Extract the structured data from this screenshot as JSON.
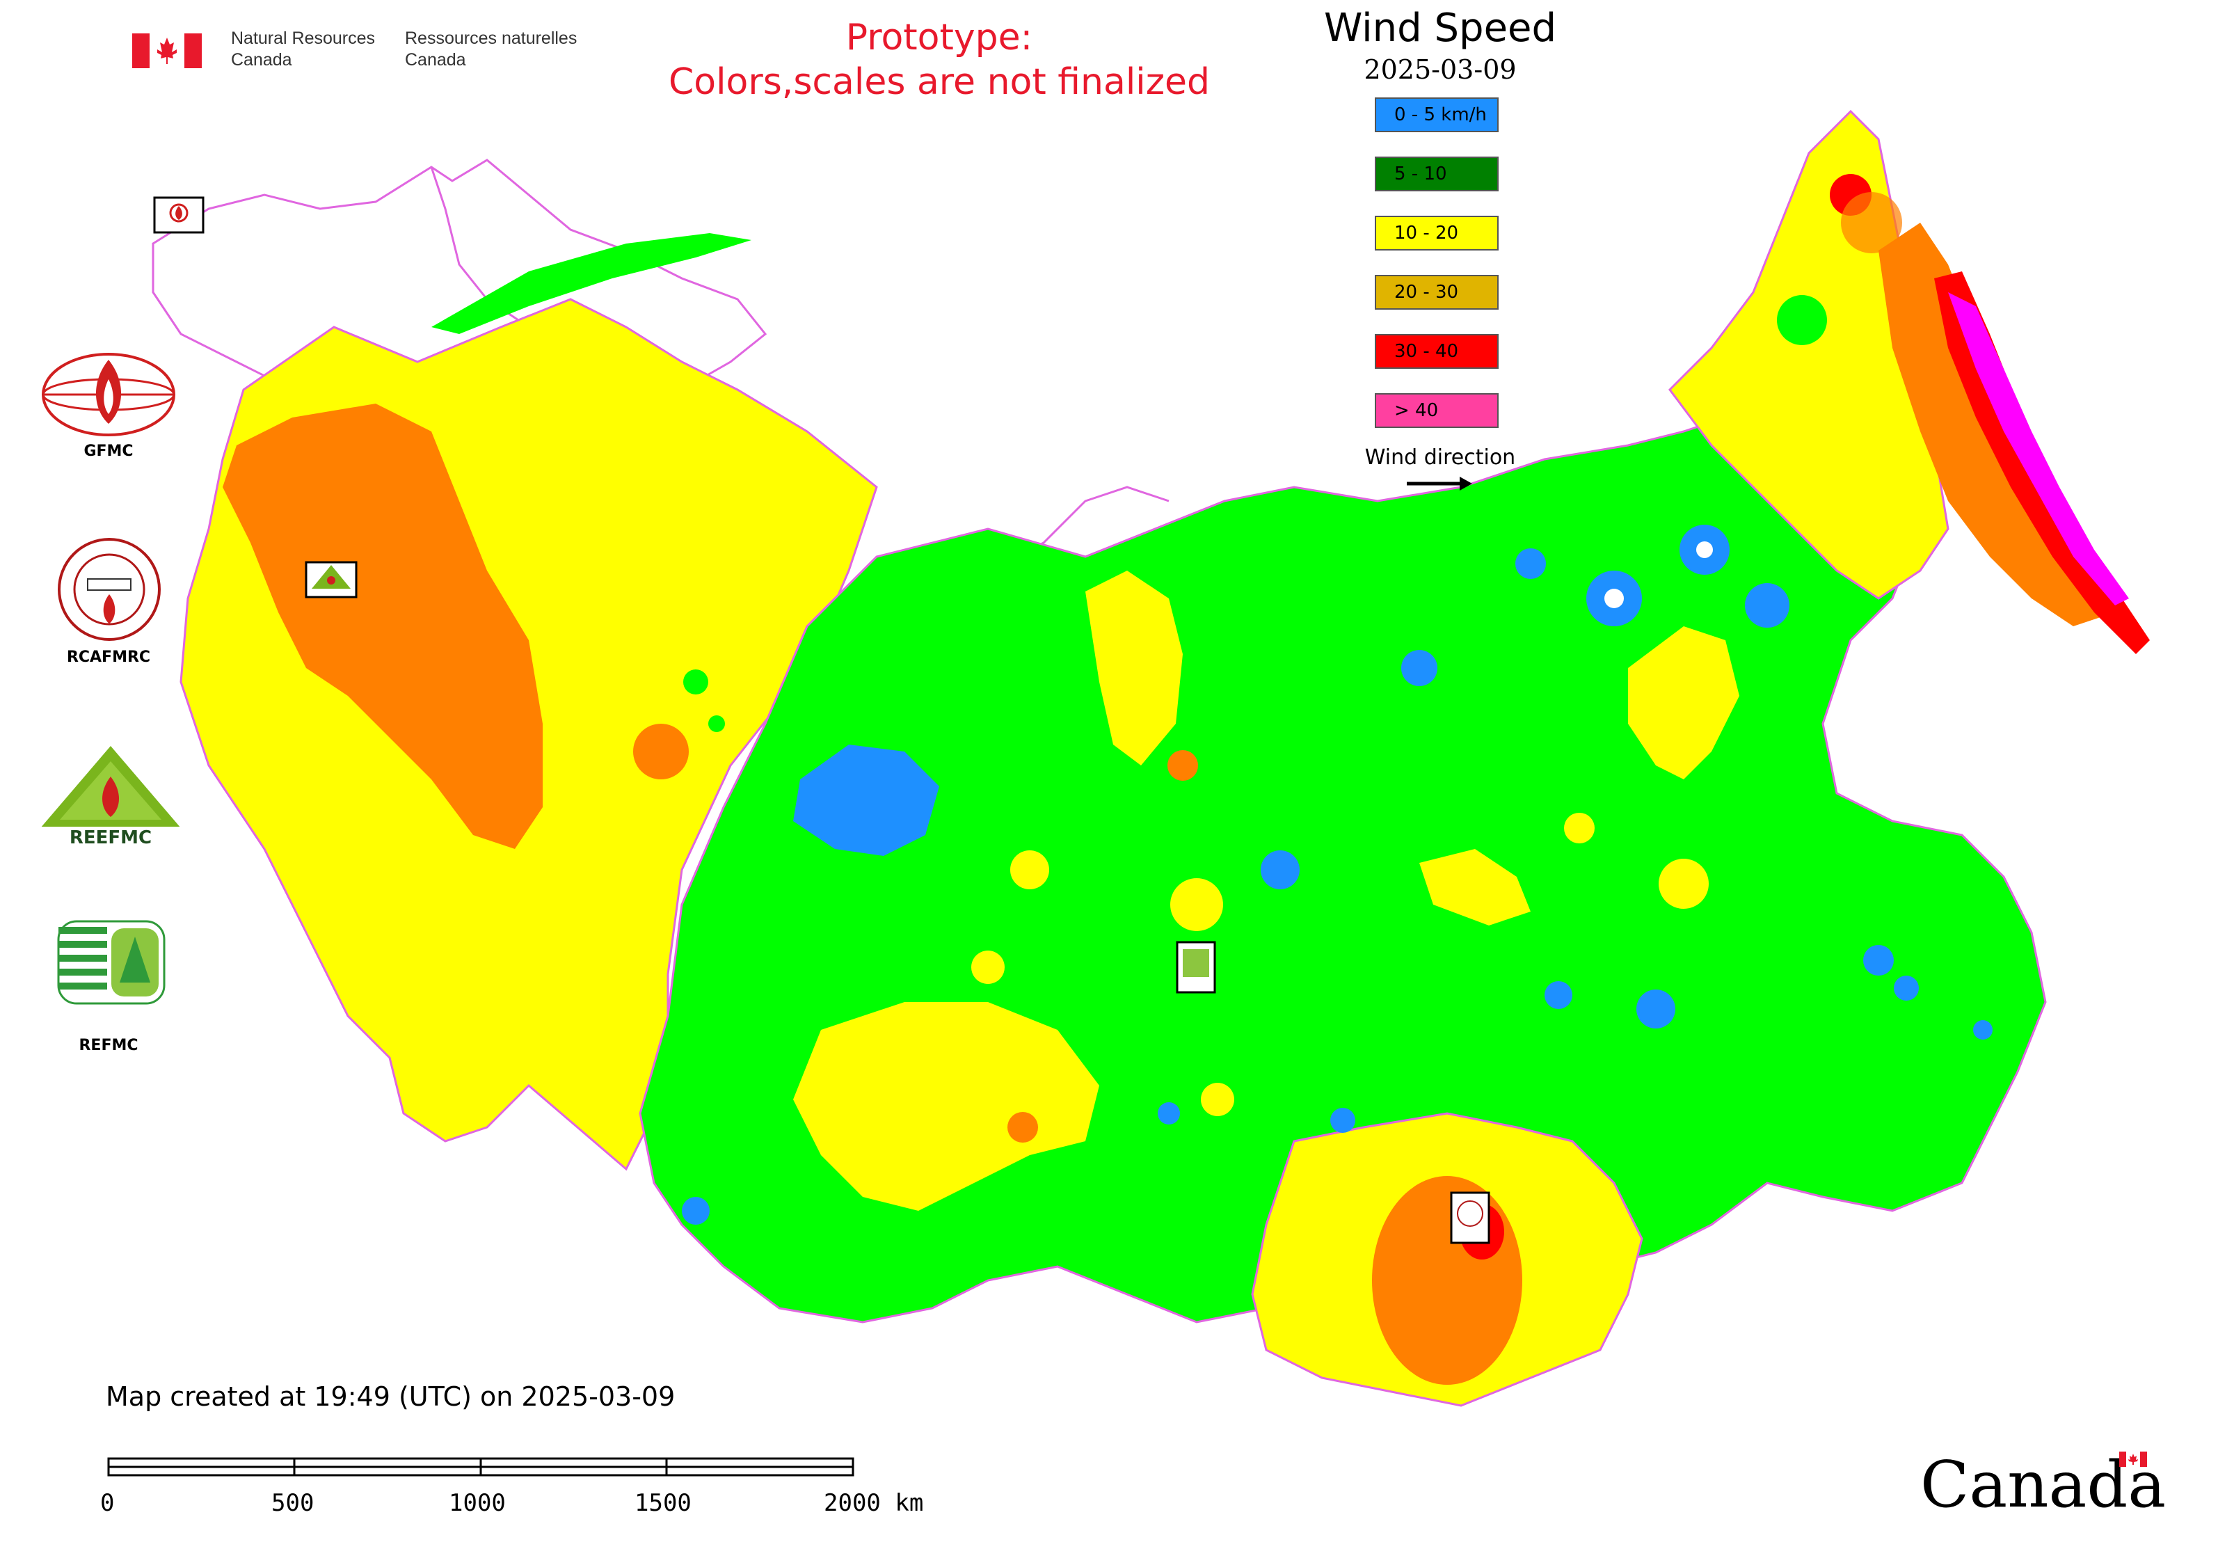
{
  "header": {
    "org_en_line1": "Natural Resources",
    "org_en_line2": "Canada",
    "org_fr_line1": "Ressources naturelles",
    "org_fr_line2": "Canada",
    "notice_line1": "Prototype:",
    "notice_line2": "Colors,scales are not finalized"
  },
  "legend": {
    "title": "Wind Speed",
    "date": "2025-03-09",
    "items": [
      {
        "label": "0 - 5 km/h",
        "color": "#1e90ff"
      },
      {
        "label": "5 - 10",
        "color": "#008000"
      },
      {
        "label": "10 - 20",
        "color": "#ffff00"
      },
      {
        "label": "20 - 30",
        "color": "#e0b400"
      },
      {
        "label": "30 - 40",
        "color": "#ff0000"
      },
      {
        "label": "> 40",
        "color": "#ff40a0"
      }
    ],
    "direction_label": "Wind direction",
    "direction_icon": "arrow-right-icon"
  },
  "logos": [
    {
      "label": "GFMC",
      "icon": "gfmc-emblem-icon"
    },
    {
      "label": "RCAFMRC",
      "icon": "rcafmrc-seal-icon"
    },
    {
      "label": "",
      "icon": "reefmc-triangle-icon"
    },
    {
      "label": "REFMC",
      "icon": "refmc-emblem-icon"
    }
  ],
  "map": {
    "zone_colors": {
      "calm": "#1e90ff",
      "low": "#00ff00",
      "moderate": "#ffff00",
      "high": "#ff8000",
      "very_high": "#ff0000",
      "extreme": "#ff00ff",
      "border": "#e066e0"
    }
  },
  "footer": {
    "created": "Map created at 19:49 (UTC) on 2025-03-09",
    "scale_ticks": [
      "0",
      "500",
      "1000",
      "1500",
      "2000 km"
    ],
    "wordmark": "Canada"
  }
}
